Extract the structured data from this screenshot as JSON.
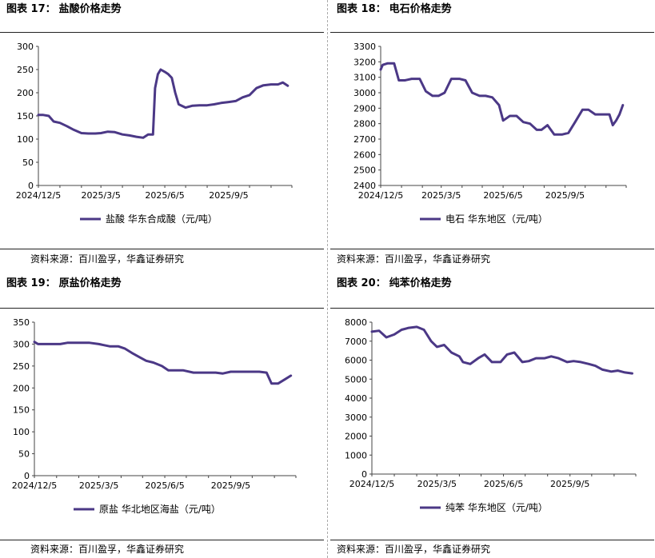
{
  "source_label": "资料来源：百川盈孚，华鑫证券研究",
  "charts": [
    {
      "title_prefix": "图表 17：",
      "title": "盐酸价格走势",
      "source": "资料来源：百川盈孚，华鑫证券研究",
      "chart_data": {
        "type": "line",
        "x_ticks": [
          "2024/12/5",
          "2025/3/5",
          "2025/6/5",
          "2025/9/5"
        ],
        "ylim": [
          0,
          300
        ],
        "yticks": [
          0,
          50,
          100,
          150,
          200,
          250,
          300
        ],
        "legend_position": "bottom-center",
        "series": [
          {
            "name": "盐酸 华东合成酸（元/吨）",
            "color": "#4B3886",
            "x": [
              "2024-12-05",
              "2024-12-12",
              "2024-12-20",
              "2024-12-27",
              "2025-01-05",
              "2025-01-15",
              "2025-01-25",
              "2025-02-05",
              "2025-02-15",
              "2025-02-25",
              "2025-03-05",
              "2025-03-15",
              "2025-03-25",
              "2025-04-05",
              "2025-04-15",
              "2025-04-25",
              "2025-05-05",
              "2025-05-12",
              "2025-05-19",
              "2025-05-22",
              "2025-05-26",
              "2025-05-30",
              "2025-06-05",
              "2025-06-10",
              "2025-06-15",
              "2025-06-20",
              "2025-06-25",
              "2025-07-05",
              "2025-07-15",
              "2025-07-25",
              "2025-08-05",
              "2025-08-15",
              "2025-08-25",
              "2025-09-05",
              "2025-09-15",
              "2025-09-25",
              "2025-10-05",
              "2025-10-15",
              "2025-10-25",
              "2025-11-05",
              "2025-11-15",
              "2025-11-22",
              "2025-11-29"
            ],
            "y": [
              152,
              152,
              150,
              138,
              135,
              128,
              120,
              113,
              112,
              112,
              113,
              116,
              115,
              110,
              108,
              105,
              103,
              110,
              110,
              210,
              240,
              250,
              245,
              240,
              232,
              200,
              175,
              168,
              172,
              173,
              173,
              175,
              178,
              180,
              182,
              190,
              195,
              210,
              216,
              218,
              218,
              222,
              215
            ]
          }
        ]
      }
    },
    {
      "title_prefix": "图表 18：",
      "title": "电石价格走势",
      "source": "资料来源：百川盈孚，华鑫证券研究",
      "chart_data": {
        "type": "line",
        "x_ticks": [
          "2024/12/5",
          "2025/3/5",
          "2025/6/5",
          "2025/9/5"
        ],
        "ylim": [
          2400,
          3300
        ],
        "yticks": [
          2400,
          2500,
          2600,
          2700,
          2800,
          2900,
          3000,
          3100,
          3200,
          3300
        ],
        "legend_position": "bottom-center",
        "series": [
          {
            "name": "电石 华东地区（元/吨）",
            "color": "#4B3886",
            "x": [
              "2024-12-05",
              "2024-12-08",
              "2024-12-15",
              "2024-12-25",
              "2025-01-01",
              "2025-01-10",
              "2025-01-20",
              "2025-02-01",
              "2025-02-10",
              "2025-02-20",
              "2025-03-01",
              "2025-03-10",
              "2025-03-20",
              "2025-04-01",
              "2025-04-10",
              "2025-04-20",
              "2025-05-01",
              "2025-05-10",
              "2025-05-20",
              "2025-05-30",
              "2025-06-05",
              "2025-06-15",
              "2025-06-25",
              "2025-07-05",
              "2025-07-15",
              "2025-07-25",
              "2025-08-01",
              "2025-08-10",
              "2025-08-20",
              "2025-09-01",
              "2025-09-10",
              "2025-09-20",
              "2025-10-01",
              "2025-10-10",
              "2025-10-20",
              "2025-11-01",
              "2025-11-10",
              "2025-11-15",
              "2025-11-20",
              "2025-11-25",
              "2025-11-30"
            ],
            "y": [
              3150,
              3180,
              3190,
              3190,
              3080,
              3080,
              3090,
              3090,
              3010,
              2980,
              2980,
              3000,
              3090,
              3090,
              3080,
              3000,
              2980,
              2980,
              2970,
              2920,
              2820,
              2850,
              2850,
              2810,
              2800,
              2760,
              2760,
              2790,
              2730,
              2730,
              2740,
              2810,
              2890,
              2890,
              2860,
              2860,
              2860,
              2790,
              2820,
              2860,
              2920
            ]
          }
        ]
      }
    },
    {
      "title_prefix": "图表 19：",
      "title": "原盐价格走势",
      "source": "资料来源：百川盈孚，华鑫证券研究",
      "chart_data": {
        "type": "line",
        "x_ticks": [
          "2024/12/5",
          "2025/3/5",
          "2025/6/5",
          "2025/9/5"
        ],
        "ylim": [
          0,
          350
        ],
        "yticks": [
          0,
          50,
          100,
          150,
          200,
          250,
          300,
          350
        ],
        "legend_position": "bottom-center",
        "series": [
          {
            "name": "原盐 华北地区海盐（元/吨）",
            "color": "#4B3886",
            "x": [
              "2024-12-05",
              "2024-12-10",
              "2024-12-20",
              "2025-01-10",
              "2025-01-20",
              "2025-02-10",
              "2025-02-20",
              "2025-03-05",
              "2025-03-20",
              "2025-04-01",
              "2025-04-10",
              "2025-04-20",
              "2025-05-01",
              "2025-05-10",
              "2025-05-20",
              "2025-06-01",
              "2025-06-10",
              "2025-06-20",
              "2025-07-01",
              "2025-07-15",
              "2025-08-01",
              "2025-08-15",
              "2025-08-25",
              "2025-09-05",
              "2025-09-20",
              "2025-10-01",
              "2025-10-15",
              "2025-10-25",
              "2025-11-01",
              "2025-11-10",
              "2025-11-20",
              "2025-11-28"
            ],
            "y": [
              305,
              300,
              300,
              300,
              303,
              303,
              303,
              300,
              295,
              295,
              290,
              280,
              270,
              262,
              258,
              250,
              240,
              240,
              240,
              235,
              235,
              235,
              233,
              237,
              237,
              237,
              237,
              235,
              210,
              210,
              220,
              228
            ]
          }
        ]
      }
    },
    {
      "title_prefix": "图表 20：",
      "title": "纯苯价格走势",
      "source": "资料来源：百川盈孚，华鑫证券研究",
      "chart_data": {
        "type": "line",
        "x_ticks": [
          "2024/12/5",
          "2025/3/5",
          "2025/6/5",
          "2025/9/5"
        ],
        "ylim": [
          0,
          8000
        ],
        "yticks": [
          0,
          1000,
          2000,
          3000,
          4000,
          5000,
          6000,
          7000,
          8000
        ],
        "legend_position": "bottom-center",
        "series": [
          {
            "name": "纯苯 华东地区（元/吨）",
            "color": "#4B3886",
            "x": [
              "2024-12-05",
              "2024-12-15",
              "2024-12-25",
              "2025-01-05",
              "2025-01-15",
              "2025-01-25",
              "2025-02-05",
              "2025-02-15",
              "2025-02-25",
              "2025-03-05",
              "2025-03-15",
              "2025-03-25",
              "2025-04-05",
              "2025-04-10",
              "2025-04-20",
              "2025-05-01",
              "2025-05-10",
              "2025-05-20",
              "2025-06-01",
              "2025-06-10",
              "2025-06-20",
              "2025-07-01",
              "2025-07-10",
              "2025-07-20",
              "2025-08-01",
              "2025-08-10",
              "2025-08-20",
              "2025-09-01",
              "2025-09-10",
              "2025-09-20",
              "2025-10-01",
              "2025-10-10",
              "2025-10-20",
              "2025-11-01",
              "2025-11-10",
              "2025-11-20",
              "2025-11-30"
            ],
            "y": [
              7500,
              7550,
              7200,
              7350,
              7600,
              7700,
              7750,
              7600,
              7000,
              6700,
              6800,
              6400,
              6200,
              5900,
              5800,
              6100,
              6300,
              5900,
              5900,
              6300,
              6400,
              5900,
              5950,
              6100,
              6100,
              6200,
              6100,
              5900,
              5950,
              5900,
              5800,
              5700,
              5500,
              5400,
              5450,
              5350,
              5300
            ]
          }
        ]
      }
    }
  ]
}
